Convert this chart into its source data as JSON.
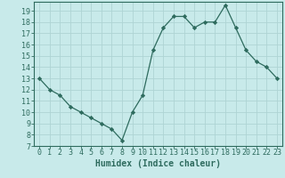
{
  "xlabel": "Humidex (Indice chaleur)",
  "x_values": [
    0,
    1,
    2,
    3,
    4,
    5,
    6,
    7,
    8,
    9,
    10,
    11,
    12,
    13,
    14,
    15,
    16,
    17,
    18,
    19,
    20,
    21,
    22,
    23
  ],
  "y_values": [
    13,
    12,
    11.5,
    10.5,
    10,
    9.5,
    9,
    8.5,
    7.5,
    10,
    11.5,
    15.5,
    17.5,
    18.5,
    18.5,
    17.5,
    18,
    18,
    19.5,
    17.5,
    15.5,
    14.5,
    14,
    13
  ],
  "line_color": "#2e6b5e",
  "marker": "D",
  "marker_size": 2.2,
  "background_color": "#c8eaea",
  "grid_color": "#aed4d4",
  "ylim": [
    7,
    19.8
  ],
  "xlim": [
    -0.5,
    23.5
  ],
  "yticks": [
    7,
    8,
    9,
    10,
    11,
    12,
    13,
    14,
    15,
    16,
    17,
    18,
    19
  ],
  "xticks": [
    0,
    1,
    2,
    3,
    4,
    5,
    6,
    7,
    8,
    9,
    10,
    11,
    12,
    13,
    14,
    15,
    16,
    17,
    18,
    19,
    20,
    21,
    22,
    23
  ],
  "xtick_labels": [
    "0",
    "1",
    "2",
    "3",
    "4",
    "5",
    "6",
    "7",
    "8",
    "9",
    "10",
    "11",
    "12",
    "13",
    "14",
    "15",
    "16",
    "17",
    "18",
    "19",
    "20",
    "21",
    "22",
    "23"
  ],
  "tick_color": "#2e6b5e",
  "axis_label_color": "#2e6b5e",
  "font_size_label": 7,
  "font_size_tick": 6
}
